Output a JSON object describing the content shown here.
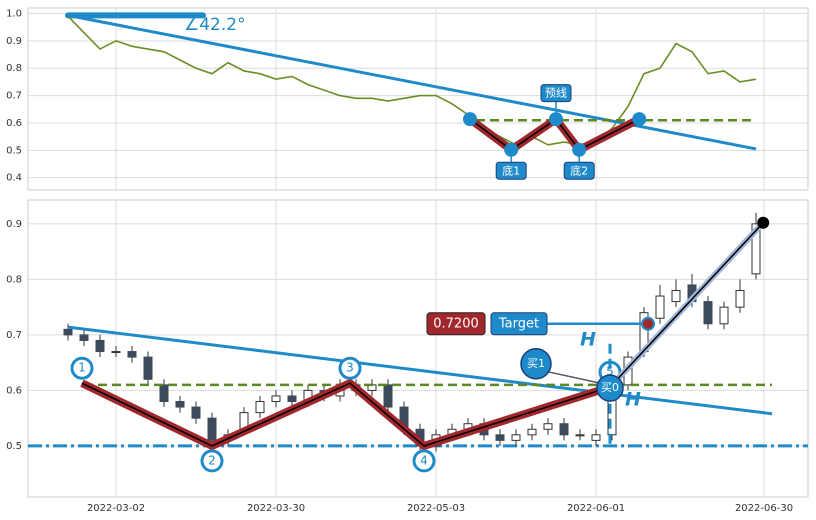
{
  "chart_data": [
    {
      "type": "line",
      "xlim": [
        -5,
        92.5
      ],
      "ylim": [
        0.355,
        1.02
      ],
      "yticks": [
        0.4,
        0.5,
        0.6,
        0.7,
        0.8,
        0.9,
        {
          "value": 1,
          "label": "1.0"
        }
      ],
      "grid": true,
      "color": "#6b8e23",
      "x": [
        0,
        2,
        4,
        6,
        8,
        10,
        12,
        14,
        16,
        18,
        20,
        22,
        24,
        26,
        28,
        30,
        32,
        34,
        36,
        38,
        40,
        42,
        44,
        46,
        48,
        50,
        52,
        54,
        56,
        58,
        60,
        62,
        64,
        66,
        68,
        70,
        72,
        74,
        76,
        78,
        80,
        82,
        84,
        86
      ],
      "values": [
        0.99,
        0.93,
        0.87,
        0.9,
        0.88,
        0.87,
        0.86,
        0.83,
        0.8,
        0.78,
        0.82,
        0.79,
        0.78,
        0.76,
        0.77,
        0.74,
        0.72,
        0.7,
        0.69,
        0.69,
        0.68,
        0.69,
        0.7,
        0.7,
        0.67,
        0.63,
        0.58,
        0.55,
        0.52,
        0.55,
        0.52,
        0.53,
        0.52,
        0.53,
        0.58,
        0.66,
        0.78,
        0.8,
        0.89,
        0.86,
        0.78,
        0.79,
        0.75,
        0.76
      ],
      "trendline": {
        "x": [
          0,
          86
        ],
        "values": [
          0.993,
          0.505
        ]
      },
      "angle_label": "∠42.2°",
      "neckline": {
        "x": [
          51,
          86
        ],
        "value": 0.61
      },
      "pattern": {
        "x": [
          50.25,
          55.4,
          61,
          63.9,
          71.4
        ],
        "values": [
          0.614,
          0.502,
          0.614,
          0.502,
          0.614
        ]
      },
      "pattern_labels": [
        "底1",
        "预线",
        "底2"
      ]
    },
    {
      "type": "candlestick",
      "xlim": [
        -5,
        92.5
      ],
      "ylim": [
        0.408,
        0.943
      ],
      "yticks": [
        0.5,
        0.6,
        0.7,
        0.8,
        0.9
      ],
      "xticks": [
        {
          "value": 6,
          "label": "2022-03-02"
        },
        {
          "value": 26,
          "label": "2022-03-30"
        },
        {
          "value": 46,
          "label": "2022-05-03"
        },
        {
          "value": 66,
          "label": "2022-06-01"
        },
        {
          "value": 87,
          "label": "2022-06-30"
        }
      ],
      "grid": true,
      "x": [
        0,
        2,
        4,
        6,
        8,
        10,
        12,
        14,
        16,
        18,
        20,
        22,
        24,
        26,
        28,
        30,
        32,
        34,
        36,
        38,
        40,
        42,
        44,
        46,
        48,
        50,
        52,
        54,
        56,
        58,
        60,
        62,
        64,
        66,
        68,
        70,
        72,
        74,
        76,
        78,
        80,
        82,
        84,
        86
      ],
      "open": [
        0.71,
        0.7,
        0.69,
        0.67,
        0.67,
        0.66,
        0.61,
        0.58,
        0.57,
        0.55,
        0.51,
        0.53,
        0.56,
        0.58,
        0.59,
        0.58,
        0.6,
        0.59,
        0.61,
        0.6,
        0.61,
        0.57,
        0.53,
        0.5,
        0.52,
        0.53,
        0.54,
        0.52,
        0.51,
        0.52,
        0.53,
        0.54,
        0.52,
        0.51,
        0.52,
        0.61,
        0.67,
        0.73,
        0.76,
        0.79,
        0.76,
        0.72,
        0.75,
        0.81
      ],
      "high": [
        0.72,
        0.71,
        0.7,
        0.68,
        0.68,
        0.67,
        0.62,
        0.59,
        0.58,
        0.56,
        0.53,
        0.57,
        0.59,
        0.6,
        0.6,
        0.61,
        0.61,
        0.62,
        0.62,
        0.62,
        0.62,
        0.58,
        0.54,
        0.53,
        0.54,
        0.55,
        0.55,
        0.53,
        0.53,
        0.54,
        0.55,
        0.55,
        0.53,
        0.53,
        0.62,
        0.67,
        0.75,
        0.79,
        0.8,
        0.81,
        0.77,
        0.76,
        0.8,
        0.92
      ],
      "low": [
        0.69,
        0.68,
        0.66,
        0.66,
        0.65,
        0.61,
        0.57,
        0.56,
        0.54,
        0.5,
        0.5,
        0.52,
        0.55,
        0.57,
        0.57,
        0.57,
        0.58,
        0.58,
        0.59,
        0.59,
        0.56,
        0.52,
        0.49,
        0.49,
        0.51,
        0.52,
        0.51,
        0.5,
        0.5,
        0.51,
        0.52,
        0.51,
        0.51,
        0.5,
        0.51,
        0.6,
        0.66,
        0.72,
        0.75,
        0.75,
        0.71,
        0.71,
        0.74,
        0.8
      ],
      "close": [
        0.7,
        0.69,
        0.67,
        0.67,
        0.66,
        0.62,
        0.58,
        0.57,
        0.55,
        0.51,
        0.52,
        0.56,
        0.58,
        0.59,
        0.58,
        0.6,
        0.59,
        0.61,
        0.6,
        0.61,
        0.57,
        0.53,
        0.5,
        0.52,
        0.53,
        0.54,
        0.52,
        0.51,
        0.52,
        0.53,
        0.54,
        0.52,
        0.52,
        0.52,
        0.6,
        0.66,
        0.74,
        0.77,
        0.78,
        0.76,
        0.72,
        0.75,
        0.78,
        0.9
      ],
      "up_color": "#ffffff",
      "down_color": "#3d4a5c",
      "trendline": {
        "x": [
          0,
          88
        ],
        "values": [
          0.714,
          0.558
        ]
      },
      "neckline": {
        "x": [
          2,
          88
        ],
        "value": 0.61
      },
      "support": 0.5,
      "zigzag": {
        "x": [
          1.75,
          18,
          35.25,
          44.5,
          67.75
        ],
        "values": [
          0.613,
          0.5,
          0.613,
          0.5,
          0.606
        ],
        "labels": [
          "1",
          "2",
          "3",
          "4",
          "5"
        ]
      },
      "target_line": {
        "x": [
          67.75,
          86.9
        ],
        "values": [
          0.606,
          0.902
        ]
      },
      "target": {
        "value": 0.72,
        "label": "0.7200",
        "x": 72.5
      },
      "target_label": "Target",
      "h_label": "H",
      "buy_labels": [
        "买1",
        "买0"
      ]
    }
  ]
}
